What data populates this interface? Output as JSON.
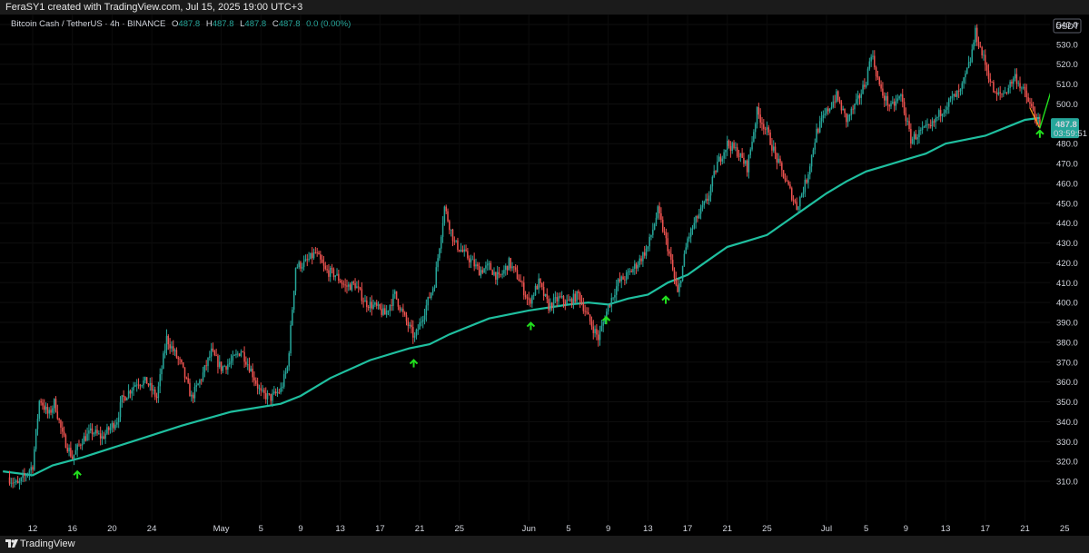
{
  "header": {
    "text": "FeraSY1 created with TradingView.com, Jul 15, 2025 19:00 UTC+3"
  },
  "footer": {
    "brand": "TradingView",
    "logo": "tradingview-logo-icon"
  },
  "legend": {
    "symbol": "Bitcoin Cash / TetherUS · 4h · BINANCE",
    "o_label": "O",
    "o": "487.8",
    "h_label": "H",
    "h": "487.8",
    "l_label": "L",
    "l": "487.8",
    "c_label": "C",
    "c": "487.8",
    "change": "0.0 (0.00%)"
  },
  "currency_badge": "USDT",
  "price_label": {
    "price": "487.8",
    "countdown": "03:59:51"
  },
  "colors": {
    "up": "#26a69a",
    "down": "#ef5350",
    "ma": "#1fbf9f",
    "arrow": "#22e01e",
    "background": "#000000",
    "price_tag": "#26a69a"
  },
  "chart_data": {
    "type": "candlestick",
    "symbol": "BCHUSDT",
    "interval": "4h",
    "ylim": [
      300,
      545
    ],
    "y_ticks": [
      310,
      320,
      330,
      340,
      350,
      360,
      370,
      380,
      390,
      400,
      410,
      420,
      430,
      440,
      450,
      460,
      470,
      480,
      490,
      500,
      510,
      520,
      530,
      540
    ],
    "x_tick_labels": [
      "12",
      "16",
      "20",
      "24",
      "May",
      "5",
      "9",
      "13",
      "17",
      "21",
      "25",
      "Jun",
      "5",
      "9",
      "13",
      "17",
      "21",
      "25",
      "Jul",
      "5",
      "9",
      "13",
      "17",
      "21",
      "25"
    ],
    "x_tick_day_index": [
      0,
      4,
      8,
      12,
      19,
      23,
      27,
      31,
      35,
      39,
      43,
      50,
      54,
      58,
      62,
      66,
      70,
      74,
      80,
      84,
      88,
      92,
      96,
      100,
      104
    ],
    "x_tick_day_unit": "days since Apr 12, 2025",
    "price_path": [
      [
        -2.5,
        312
      ],
      [
        -1.5,
        308
      ],
      [
        0,
        318
      ],
      [
        0.7,
        352
      ],
      [
        1.6,
        343
      ],
      [
        2.2,
        350
      ],
      [
        3,
        333
      ],
      [
        4,
        322
      ],
      [
        5,
        331
      ],
      [
        6,
        335
      ],
      [
        7,
        332
      ],
      [
        8.5,
        341
      ],
      [
        9,
        351
      ],
      [
        10.5,
        360
      ],
      [
        11.5,
        360
      ],
      [
        12.5,
        352
      ],
      [
        13.5,
        382
      ],
      [
        15,
        368
      ],
      [
        16,
        352
      ],
      [
        17,
        362
      ],
      [
        18,
        375
      ],
      [
        19,
        367
      ],
      [
        20,
        370
      ],
      [
        21,
        376
      ],
      [
        22,
        366
      ],
      [
        23,
        354
      ],
      [
        24,
        352
      ],
      [
        25,
        356
      ],
      [
        25.7,
        368
      ],
      [
        26.5,
        418
      ],
      [
        27.5,
        420
      ],
      [
        28.5,
        425
      ],
      [
        29.5,
        416
      ],
      [
        30.5,
        414
      ],
      [
        31.5,
        408
      ],
      [
        32.5,
        409
      ],
      [
        33.5,
        400
      ],
      [
        34.5,
        398
      ],
      [
        35.5,
        394
      ],
      [
        36.5,
        404
      ],
      [
        37.5,
        392
      ],
      [
        38.5,
        382
      ],
      [
        39.5,
        396
      ],
      [
        40.5,
        410
      ],
      [
        41.5,
        448
      ],
      [
        42.5,
        430
      ],
      [
        44,
        422
      ],
      [
        45,
        416
      ],
      [
        46,
        418
      ],
      [
        47,
        412
      ],
      [
        48,
        420
      ],
      [
        49,
        412
      ],
      [
        50,
        400
      ],
      [
        51,
        410
      ],
      [
        52,
        398
      ],
      [
        53,
        402
      ],
      [
        54,
        400
      ],
      [
        55,
        404
      ],
      [
        56,
        392
      ],
      [
        57,
        382
      ],
      [
        58,
        398
      ],
      [
        59,
        410
      ],
      [
        60,
        414
      ],
      [
        61,
        420
      ],
      [
        62,
        428
      ],
      [
        63,
        446
      ],
      [
        64,
        428
      ],
      [
        65,
        404
      ],
      [
        66,
        432
      ],
      [
        67,
        443
      ],
      [
        68,
        452
      ],
      [
        69,
        470
      ],
      [
        70,
        480
      ],
      [
        71,
        476
      ],
      [
        72,
        468
      ],
      [
        73,
        496
      ],
      [
        74,
        486
      ],
      [
        75,
        472
      ],
      [
        76,
        460
      ],
      [
        77,
        448
      ],
      [
        78,
        462
      ],
      [
        79,
        486
      ],
      [
        80,
        496
      ],
      [
        81,
        504
      ],
      [
        82,
        492
      ],
      [
        83,
        500
      ],
      [
        84,
        512
      ],
      [
        84.5,
        526
      ],
      [
        85.5,
        506
      ],
      [
        86.5,
        498
      ],
      [
        87.5,
        504
      ],
      [
        88.5,
        482
      ],
      [
        89.5,
        486
      ],
      [
        90.5,
        488
      ],
      [
        91.5,
        496
      ],
      [
        92.5,
        502
      ],
      [
        93.5,
        506
      ],
      [
        94.5,
        522
      ],
      [
        95,
        536
      ],
      [
        96,
        520
      ],
      [
        97,
        504
      ],
      [
        98,
        506
      ],
      [
        99,
        514
      ],
      [
        100,
        505
      ],
      [
        101,
        494
      ],
      [
        101.5,
        487.8
      ]
    ],
    "ma_path": [
      [
        -3,
        315
      ],
      [
        0,
        313
      ],
      [
        2,
        318
      ],
      [
        5,
        322
      ],
      [
        10,
        330
      ],
      [
        15,
        338
      ],
      [
        20,
        345
      ],
      [
        25,
        349
      ],
      [
        27,
        353
      ],
      [
        30,
        362
      ],
      [
        34,
        371
      ],
      [
        38,
        377
      ],
      [
        40,
        379
      ],
      [
        42,
        384
      ],
      [
        46,
        392
      ],
      [
        50,
        396
      ],
      [
        54,
        399
      ],
      [
        56,
        400
      ],
      [
        58,
        399
      ],
      [
        60,
        402
      ],
      [
        62,
        404
      ],
      [
        64,
        410
      ],
      [
        66,
        414
      ],
      [
        68,
        421
      ],
      [
        70,
        428
      ],
      [
        72,
        431
      ],
      [
        74,
        434
      ],
      [
        76,
        441
      ],
      [
        78,
        448
      ],
      [
        80,
        455
      ],
      [
        82,
        461
      ],
      [
        84,
        466
      ],
      [
        86,
        469
      ],
      [
        88,
        472
      ],
      [
        90,
        475
      ],
      [
        92,
        480
      ],
      [
        94,
        482
      ],
      [
        96,
        484
      ],
      [
        98,
        488
      ],
      [
        100,
        492
      ],
      [
        101.5,
        493
      ]
    ],
    "ma_label_tail": "",
    "support_arrows_day_index": [
      4.5,
      38.4,
      50.2,
      57.8,
      63.8,
      101.5
    ],
    "projection": {
      "from": [
        101.5,
        487.8
      ],
      "to": [
        105,
        546
      ]
    },
    "decline_segment": {
      "from": [
        100.5,
        498
      ],
      "to": [
        101.5,
        487.8
      ]
    }
  }
}
